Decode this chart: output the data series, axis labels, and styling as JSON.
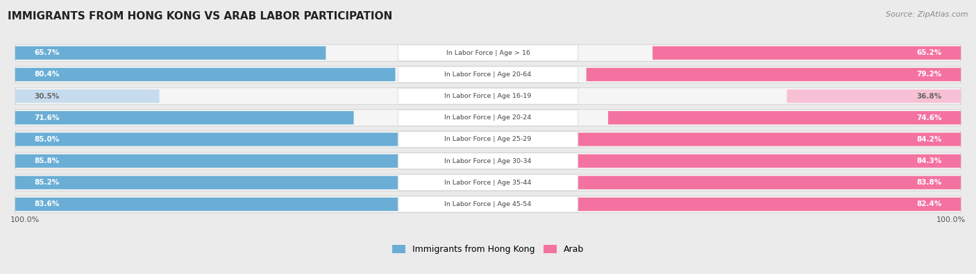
{
  "title": "IMMIGRANTS FROM HONG KONG VS ARAB LABOR PARTICIPATION",
  "source": "Source: ZipAtlas.com",
  "categories": [
    "In Labor Force | Age > 16",
    "In Labor Force | Age 20-64",
    "In Labor Force | Age 16-19",
    "In Labor Force | Age 20-24",
    "In Labor Force | Age 25-29",
    "In Labor Force | Age 30-34",
    "In Labor Force | Age 35-44",
    "In Labor Force | Age 45-54"
  ],
  "hk_values": [
    65.7,
    80.4,
    30.5,
    71.6,
    85.0,
    85.8,
    85.2,
    83.6
  ],
  "arab_values": [
    65.2,
    79.2,
    36.8,
    74.6,
    84.2,
    84.3,
    83.8,
    82.4
  ],
  "hk_color": "#6aaed6",
  "hk_color_light": "#c6dcee",
  "arab_color": "#f472a0",
  "arab_color_light": "#f8c0d4",
  "bg_color": "#ebebeb",
  "row_bg": "#f5f5f5",
  "row_border": "#d8d8d8",
  "label_bg": "#ffffff",
  "label_border": "#d0d0d0",
  "bar_max": 100.0,
  "legend_hk": "Immigrants from Hong Kong",
  "legend_arab": "Arab",
  "bottom_label": "100.0%"
}
